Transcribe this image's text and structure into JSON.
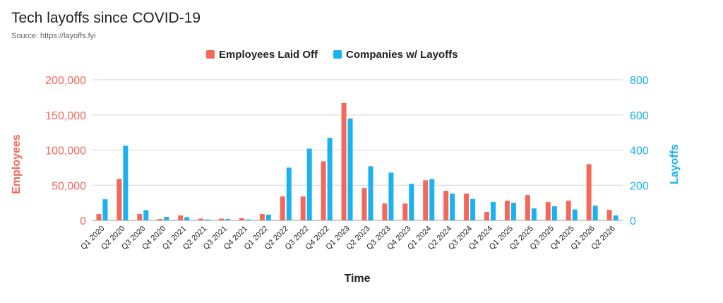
{
  "title": "Tech layoffs since COVID-19",
  "source": "Source: https://layoffs.fyi",
  "chart_data": {
    "type": "bar",
    "categories": [
      "Q1 2020",
      "Q2 2020",
      "Q3 2020",
      "Q4 2020",
      "Q1 2021",
      "Q2 2021",
      "Q3 2021",
      "Q4 2021",
      "Q1 2022",
      "Q2 2022",
      "Q3 2022",
      "Q4 2022",
      "Q1 2023",
      "Q2 2023",
      "Q3 2023",
      "Q4 2023",
      "Q1 2024",
      "Q2 2024",
      "Q3 2024",
      "Q4 2024",
      "Q1 2025",
      "Q2 2025",
      "Q3 2025",
      "Q4 2025",
      "Q1 2026",
      "Q2 2026"
    ],
    "series": [
      {
        "name": "Employees Laid Off",
        "axis": "left",
        "color": "#f4685a",
        "values": [
          9000,
          59000,
          9000,
          2000,
          7000,
          2500,
          2500,
          3000,
          9000,
          34000,
          34000,
          84000,
          167000,
          46000,
          24000,
          24000,
          57000,
          42000,
          38000,
          12000,
          28000,
          36000,
          26000,
          28000,
          80000,
          15000
        ]
      },
      {
        "name": "Companies w/ Layoffs",
        "axis": "right",
        "color": "#1ab2f0",
        "values": [
          120,
          425,
          58,
          20,
          18,
          5,
          8,
          5,
          32,
          300,
          408,
          470,
          580,
          308,
          272,
          208,
          235,
          152,
          122,
          105,
          100,
          68,
          80,
          62,
          84,
          28
        ]
      }
    ],
    "xlabel": "Time",
    "ylabel_left": "Employees",
    "ylabel_right": "Layoffs",
    "ylim_left": [
      0,
      200000
    ],
    "ylim_right": [
      0,
      800
    ],
    "yticks_left": [
      "0",
      "50,000",
      "100,000",
      "150,000",
      "200,000"
    ],
    "yticks_right": [
      "0",
      "200",
      "400",
      "600",
      "800"
    ],
    "grid": true,
    "legend_position": "top-center"
  }
}
